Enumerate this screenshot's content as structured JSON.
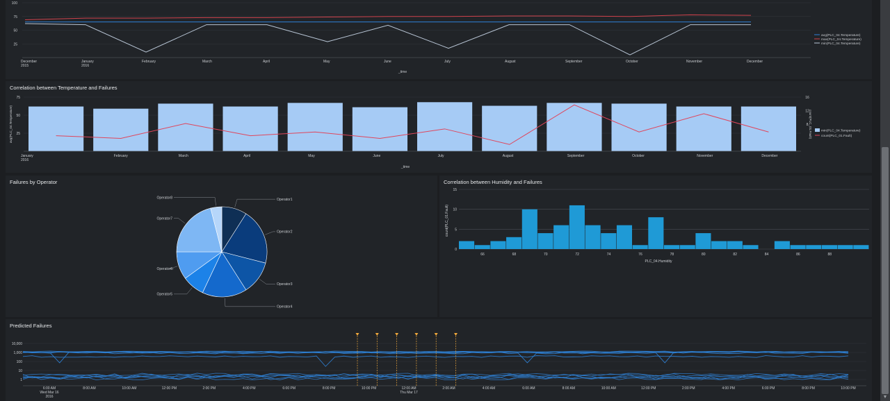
{
  "panels": {
    "top": {
      "title": ""
    },
    "corr_temp": {
      "title": "Correlation between Temperature and Failures"
    },
    "by_operator": {
      "title": "Failures by Operator"
    },
    "corr_humidity": {
      "title": "Correlation between Humidity and Failures"
    },
    "predicted": {
      "title": "Predicted Failures"
    }
  },
  "chart_data": [
    {
      "id": "top-line",
      "type": "line",
      "categories": [
        "December\n2015",
        "January\n2016",
        "February",
        "March",
        "April",
        "May",
        "June",
        "July",
        "August",
        "September",
        "October",
        "November",
        "December"
      ],
      "xlabel": "_time",
      "ylabel": "",
      "ylim": [
        0,
        100
      ],
      "yticks": [
        25,
        50,
        75,
        100
      ],
      "legend_position": "right",
      "series": [
        {
          "name": "avg(PLC_04.Temperature)",
          "color": "#2f7fd6",
          "values": [
            65,
            65,
            65,
            65,
            65,
            65,
            65,
            65,
            65,
            65,
            65,
            65,
            65
          ]
        },
        {
          "name": "max(PLC_04.Temperature)",
          "color": "#d0424c",
          "values": [
            69,
            72,
            72,
            73,
            73,
            74,
            75,
            75,
            76,
            76,
            75,
            78,
            77
          ]
        },
        {
          "name": "min(PLC_04.Temperature)",
          "color": "#b9c6d6",
          "values": [
            62,
            60,
            10,
            60,
            60,
            29,
            59,
            17,
            60,
            60,
            5,
            60,
            60
          ]
        }
      ]
    },
    {
      "id": "corr-temp",
      "type": "bar",
      "categories": [
        "January\n2016",
        "February",
        "March",
        "April",
        "May",
        "June",
        "July",
        "August",
        "September",
        "October",
        "November",
        "December"
      ],
      "xlabel": "_time",
      "ylabel": "avg(PLC_04.Temperature)",
      "y2label": "count(PLC_01.Fault)",
      "ylim": [
        0,
        75
      ],
      "yticks": [
        25,
        50,
        75
      ],
      "y2lim": [
        0,
        16
      ],
      "y2ticks": [
        8,
        12,
        16
      ],
      "legend_position": "right",
      "series": [
        {
          "name": "min(PLC_04.Temperature)",
          "type": "bar",
          "color": "#a6cbf5",
          "values": [
            62,
            59,
            66,
            62,
            67,
            61,
            68,
            63,
            67,
            66,
            62,
            62
          ]
        },
        {
          "name": "count(PLC_01.Fault)",
          "type": "line",
          "axis": "y2",
          "color": "#e0455b",
          "values": [
            4.6,
            3.8,
            8.2,
            4.6,
            5.7,
            3.8,
            6.6,
            2,
            13.7,
            5.7,
            11.1,
            5.7
          ]
        }
      ]
    },
    {
      "id": "by-operator",
      "type": "pie",
      "labels": [
        "Operator1",
        "Operator2",
        "Operator3",
        "Operator4",
        "Operator5",
        "Operator6",
        "Operator7",
        "Operator8"
      ],
      "values": [
        9,
        20,
        12,
        16,
        8,
        10,
        21,
        4
      ],
      "colors": [
        "#0f2f55",
        "#0a3c7c",
        "#0d55a6",
        "#1469cc",
        "#1c82e8",
        "#4f9cf0",
        "#7eb7f4",
        "#b6d6fa"
      ]
    },
    {
      "id": "corr-humidity",
      "type": "bar",
      "categories": [
        "65",
        "66",
        "67",
        "68",
        "69",
        "70",
        "71",
        "72",
        "73",
        "74",
        "75",
        "76",
        "77",
        "78",
        "79",
        "80",
        "81",
        "82",
        "83",
        "84",
        "85",
        "86",
        "87",
        "88",
        "89",
        "90"
      ],
      "xticks": [
        "66",
        "68",
        "70",
        "72",
        "74",
        "76",
        "78",
        "80",
        "82",
        "84",
        "86",
        "88"
      ],
      "values": [
        2,
        1,
        2,
        3,
        10,
        4,
        6,
        11,
        6,
        4,
        6,
        1,
        8,
        1,
        1,
        4,
        2,
        2,
        1,
        0,
        2,
        1,
        1,
        1,
        1,
        1
      ],
      "xlabel": "PLC_04.Humidity",
      "ylabel": "count(PLC_01.Fault)",
      "ylim": [
        0,
        15
      ],
      "yticks": [
        0,
        5,
        10,
        15
      ],
      "color": "#1f9ad6"
    },
    {
      "id": "predicted",
      "type": "line",
      "ylabel": "",
      "yscale": "log",
      "yticks": [
        "1",
        "10",
        "100",
        "1,000",
        "10,000"
      ],
      "xticks": [
        "6:00 AM\nWed Mar 16\n2016",
        "8:00 AM",
        "10:00 AM",
        "12:00 PM",
        "2:00 PM",
        "4:00 PM",
        "6:00 PM",
        "8:00 PM",
        "10:00 PM",
        "12:00 AM\nThu Mar 17",
        "2:00 AM",
        "4:00 AM",
        "6:00 AM",
        "8:00 AM",
        "10:00 AM",
        "12:00 PM",
        "2:00 PM",
        "4:00 PM",
        "6:00 PM",
        "8:00 PM",
        "10:00 PM"
      ],
      "annotation_count": 6,
      "color": "#2f83d8"
    }
  ]
}
